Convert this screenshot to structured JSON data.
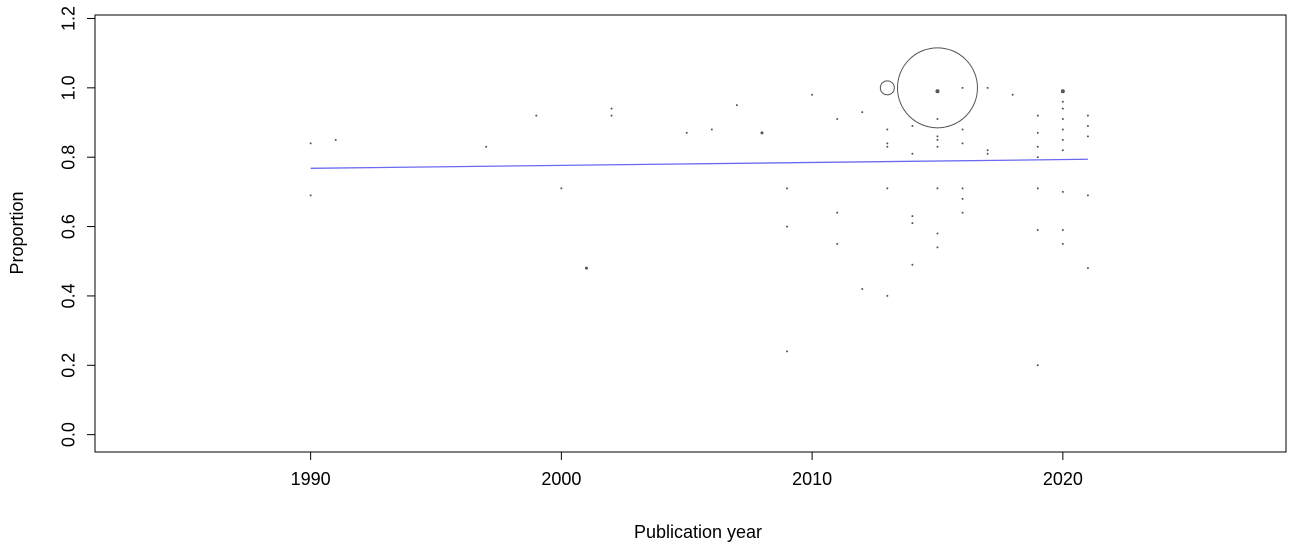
{
  "chart_data": {
    "type": "scatter",
    "x_label": "Publication year",
    "y_label": "Proportion",
    "xlim": [
      1981.4,
      2028.9
    ],
    "ylim": [
      -0.05,
      1.21
    ],
    "xticks": [
      1990,
      2000,
      2010,
      2020
    ],
    "yticks": [
      {
        "value": 0,
        "label": "0.0"
      },
      0.2,
      0.4,
      0.6,
      0.8,
      {
        "value": 1,
        "label": "1.0"
      },
      1.2
    ],
    "color": "#555555",
    "x": [
      1990,
      1990,
      1991,
      1997,
      1999,
      2000,
      2001,
      2002,
      2002,
      2005,
      2006,
      2007,
      2008,
      2009,
      2009,
      2009,
      2010,
      2011,
      2011,
      2011,
      2012,
      2012,
      2013,
      2013,
      2013,
      2013,
      2013,
      2013,
      2014,
      2014,
      2014,
      2014,
      2014,
      2015,
      2015,
      2015,
      2015,
      2015,
      2015,
      2015,
      2015,
      2015,
      2016,
      2016,
      2016,
      2016,
      2016,
      2016,
      2017,
      2017,
      2017,
      2018,
      2019,
      2019,
      2019,
      2019,
      2019,
      2019,
      2019,
      2020,
      2020,
      2020,
      2020,
      2020,
      2020,
      2020,
      2020,
      2020,
      2020,
      2021,
      2021,
      2021,
      2021,
      2021
    ],
    "values": [
      0.84,
      0.69,
      0.85,
      0.83,
      0.92,
      0.71,
      0.48,
      0.94,
      0.92,
      0.87,
      0.88,
      0.95,
      0.87,
      0.71,
      0.6,
      0.24,
      0.98,
      0.91,
      0.64,
      0.55,
      0.93,
      0.42,
      0.88,
      0.84,
      0.83,
      0.71,
      0.4,
      1.0,
      0.89,
      0.81,
      0.63,
      0.61,
      0.49,
      0.99,
      1.0,
      0.91,
      0.86,
      0.85,
      0.83,
      0.71,
      0.58,
      0.54,
      1.0,
      0.88,
      0.84,
      0.71,
      0.68,
      0.64,
      1.0,
      0.82,
      0.81,
      0.98,
      0.92,
      0.87,
      0.83,
      0.8,
      0.71,
      0.59,
      0.2,
      0.99,
      0.96,
      0.94,
      0.91,
      0.88,
      0.85,
      0.82,
      0.7,
      0.59,
      0.55,
      0.92,
      0.89,
      0.86,
      0.69,
      0.48
    ],
    "sizes": [
      1,
      1,
      1,
      1,
      1,
      1,
      1.5,
      1,
      1,
      1,
      1,
      1,
      1.5,
      1,
      1,
      1,
      1,
      1,
      1,
      1,
      1,
      1,
      1,
      1,
      1,
      1,
      1,
      7,
      1,
      1,
      1,
      1,
      1,
      2,
      40,
      1,
      1,
      1,
      1,
      1,
      1,
      1,
      1,
      1,
      1,
      1,
      1,
      1,
      1,
      1,
      1,
      1,
      1,
      1,
      1,
      1,
      1,
      1,
      1,
      2,
      1,
      1,
      1,
      1,
      1,
      1,
      1,
      1,
      1,
      1,
      1,
      1,
      1,
      1
    ],
    "line": {
      "x": [
        1990,
        2021
      ],
      "values": [
        0.768,
        0.794
      ],
      "color": "#6a6af0"
    }
  }
}
